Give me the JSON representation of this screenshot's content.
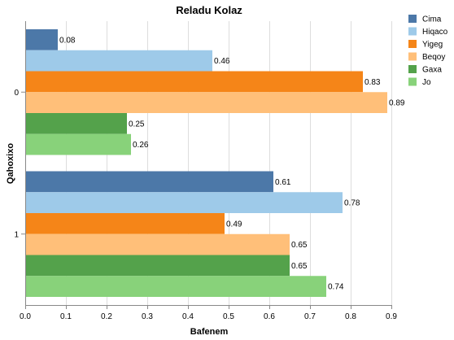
{
  "chart_data": {
    "type": "bar",
    "orientation": "horizontal",
    "title": "Reladu Kolaz",
    "xlabel": "Bafenem",
    "ylabel": "Qahoxixo",
    "categories": [
      "0",
      "1"
    ],
    "xlim": [
      0,
      0.9
    ],
    "xticks": [
      "0.0",
      "0.1",
      "0.2",
      "0.3",
      "0.4",
      "0.5",
      "0.6",
      "0.7",
      "0.8",
      "0.9"
    ],
    "grid": true,
    "legend_position": "top-right",
    "series": [
      {
        "name": "Cima",
        "color": "#4c78a8",
        "values": [
          0.08,
          0.61
        ]
      },
      {
        "name": "Hiqaco",
        "color": "#9ecae9",
        "values": [
          0.46,
          0.78
        ]
      },
      {
        "name": "Yigeg",
        "color": "#f58518",
        "values": [
          0.83,
          0.49
        ]
      },
      {
        "name": "Beqoy",
        "color": "#ffbf79",
        "values": [
          0.89,
          0.65
        ]
      },
      {
        "name": "Gaxa",
        "color": "#54a24b",
        "values": [
          0.25,
          0.65
        ]
      },
      {
        "name": "Jo",
        "color": "#88d27a",
        "values": [
          0.26,
          0.74
        ]
      }
    ]
  }
}
